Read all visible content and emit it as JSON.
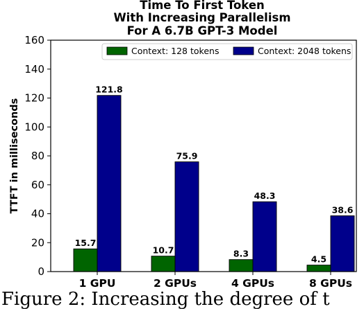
{
  "chart_data": {
    "type": "bar",
    "title": [
      "Time To First Token",
      "With Increasing Parallelism",
      "For A 6.7B GPT-3 Model"
    ],
    "xlabel": "",
    "ylabel": "TTFT in milliseconds",
    "categories": [
      "1 GPU",
      "2 GPUs",
      "4 GPUs",
      "8 GPUs"
    ],
    "series": [
      {
        "name": "Context: 128 tokens",
        "values": [
          15.7,
          10.7,
          8.3,
          4.5
        ],
        "color": "#006400"
      },
      {
        "name": "Context: 2048 tokens",
        "values": [
          121.8,
          75.9,
          48.3,
          38.6
        ],
        "color": "#00008b"
      }
    ],
    "data_labels": [
      [
        "15.7",
        "10.7",
        "8.3",
        "4.5"
      ],
      [
        "121.8",
        "75.9",
        "48.3",
        "38.6"
      ]
    ],
    "ylim": [
      0,
      160
    ],
    "yticks": [
      0,
      20,
      40,
      60,
      80,
      100,
      120,
      140,
      160
    ],
    "grid": false,
    "legend_position": "top-right"
  },
  "caption": {
    "text": "Figure 2: Increasing the degree of t"
  }
}
